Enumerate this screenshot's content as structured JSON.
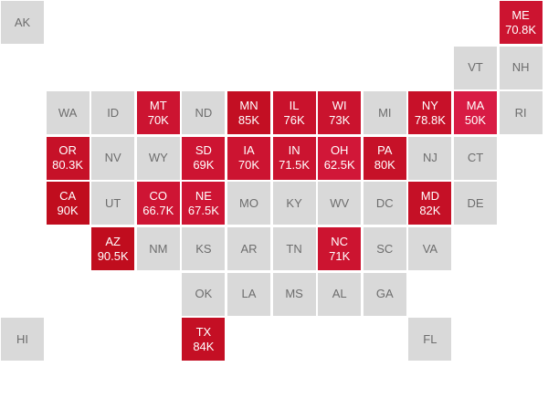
{
  "colors": {
    "empty": "#d9d9d9",
    "empty_text": "#6d6d6d",
    "filled_light": "#d81b44",
    "filled_dark": "#c00d1e"
  },
  "states": [
    {
      "abbr": "AK",
      "value": ""
    },
    {
      "abbr": "ME",
      "value": "70.8K"
    },
    {
      "abbr": "VT",
      "value": ""
    },
    {
      "abbr": "NH",
      "value": ""
    },
    {
      "abbr": "WA",
      "value": ""
    },
    {
      "abbr": "ID",
      "value": ""
    },
    {
      "abbr": "MT",
      "value": "70K"
    },
    {
      "abbr": "ND",
      "value": ""
    },
    {
      "abbr": "MN",
      "value": "85K"
    },
    {
      "abbr": "IL",
      "value": "76K"
    },
    {
      "abbr": "WI",
      "value": "73K"
    },
    {
      "abbr": "MI",
      "value": ""
    },
    {
      "abbr": "NY",
      "value": "78.8K"
    },
    {
      "abbr": "MA",
      "value": "50K"
    },
    {
      "abbr": "RI",
      "value": ""
    },
    {
      "abbr": "OR",
      "value": "80.3K"
    },
    {
      "abbr": "NV",
      "value": ""
    },
    {
      "abbr": "WY",
      "value": ""
    },
    {
      "abbr": "SD",
      "value": "69K"
    },
    {
      "abbr": "IA",
      "value": "70K"
    },
    {
      "abbr": "IN",
      "value": "71.5K"
    },
    {
      "abbr": "OH",
      "value": "62.5K"
    },
    {
      "abbr": "PA",
      "value": "80K"
    },
    {
      "abbr": "NJ",
      "value": ""
    },
    {
      "abbr": "CT",
      "value": ""
    },
    {
      "abbr": "CA",
      "value": "90K"
    },
    {
      "abbr": "UT",
      "value": ""
    },
    {
      "abbr": "CO",
      "value": "66.7K"
    },
    {
      "abbr": "NE",
      "value": "67.5K"
    },
    {
      "abbr": "MO",
      "value": ""
    },
    {
      "abbr": "KY",
      "value": ""
    },
    {
      "abbr": "WV",
      "value": ""
    },
    {
      "abbr": "DC",
      "value": ""
    },
    {
      "abbr": "MD",
      "value": "82K"
    },
    {
      "abbr": "DE",
      "value": ""
    },
    {
      "abbr": "AZ",
      "value": "90.5K"
    },
    {
      "abbr": "NM",
      "value": ""
    },
    {
      "abbr": "KS",
      "value": ""
    },
    {
      "abbr": "AR",
      "value": ""
    },
    {
      "abbr": "TN",
      "value": ""
    },
    {
      "abbr": "NC",
      "value": "71K"
    },
    {
      "abbr": "SC",
      "value": ""
    },
    {
      "abbr": "VA",
      "value": ""
    },
    {
      "abbr": "OK",
      "value": ""
    },
    {
      "abbr": "LA",
      "value": ""
    },
    {
      "abbr": "MS",
      "value": ""
    },
    {
      "abbr": "AL",
      "value": ""
    },
    {
      "abbr": "GA",
      "value": ""
    },
    {
      "abbr": "HI",
      "value": ""
    },
    {
      "abbr": "TX",
      "value": "84K"
    },
    {
      "abbr": "FL",
      "value": ""
    }
  ]
}
